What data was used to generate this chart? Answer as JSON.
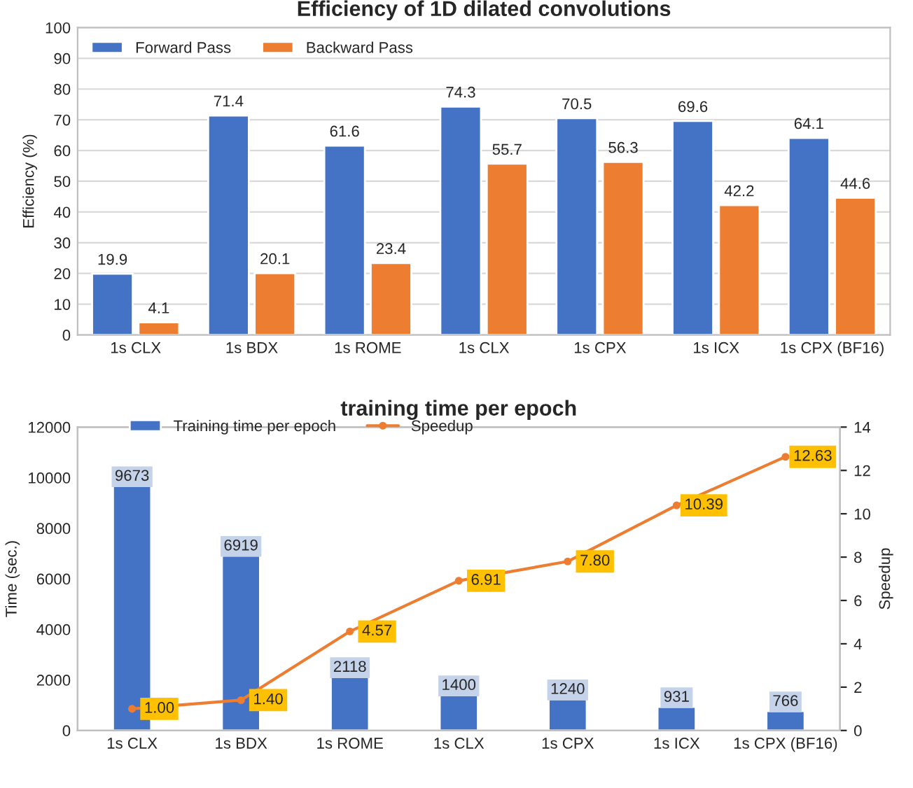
{
  "chart_data": [
    {
      "type": "bar",
      "title": "Efficiency of 1D dilated convolutions",
      "ylabel": "Efficiency (%)",
      "categories": [
        "1s CLX",
        "1s BDX",
        "1s ROME",
        "1s CLX",
        "1s CPX",
        "1s ICX",
        "1s CPX (BF16)"
      ],
      "series": [
        {
          "name": "Forward Pass",
          "color": "#4472c4",
          "values": [
            19.9,
            71.4,
            61.6,
            74.3,
            70.5,
            69.6,
            64.1
          ]
        },
        {
          "name": "Backward Pass",
          "color": "#ed7d31",
          "values": [
            4.1,
            20.1,
            23.4,
            55.7,
            56.3,
            42.2,
            44.6
          ]
        }
      ],
      "ylim": [
        0,
        100
      ],
      "yticks": [
        0,
        10,
        20,
        30,
        40,
        50,
        60,
        70,
        80,
        90,
        100
      ],
      "grid": "y",
      "legend": "top left",
      "data_labels": true
    },
    {
      "type": "bar",
      "title": "training time per epoch",
      "ylabel": "Time (sec.)",
      "y2label": "Speedup",
      "categories": [
        "1s CLX",
        "1s BDX",
        "1s ROME",
        "1s CLX",
        "1s CPX",
        "1s ICX",
        "1s CPX (BF16)"
      ],
      "series": [
        {
          "name": "Training time per epoch",
          "color": "#4472c4",
          "values": [
            9673,
            6919,
            2118,
            1400,
            1240,
            931,
            766
          ]
        },
        {
          "name": "Speedup",
          "type": "line",
          "axis": "y2",
          "color": "#ed7d31",
          "marker": "circle",
          "values": [
            1.0,
            1.4,
            4.57,
            6.91,
            7.8,
            10.39,
            12.63
          ],
          "value_labels": [
            "1.00",
            "1.40",
            "4.57",
            "6.91",
            "7.80",
            "10.39",
            "12.63"
          ]
        }
      ],
      "ylim": [
        0,
        12000
      ],
      "yticks": [
        0,
        2000,
        4000,
        6000,
        8000,
        10000,
        12000
      ],
      "y2lim": [
        0,
        14
      ],
      "y2ticks": [
        0,
        2,
        4,
        6,
        8,
        10,
        12,
        14
      ],
      "grid": false,
      "legend": "top",
      "data_labels": true
    }
  ]
}
